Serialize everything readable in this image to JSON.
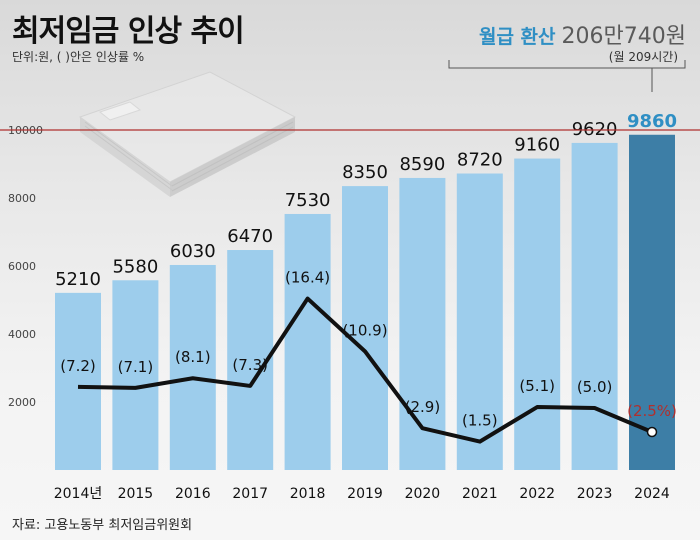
{
  "title": "최저임금 인상 추이",
  "unit_note": "단위:원, ( )안은 인상률 %",
  "monthly": {
    "label": "월급 환산",
    "value": "206만740원",
    "hours": "(월 209시간)"
  },
  "source": "자료: 고용노동부 최저임금위원회",
  "colors": {
    "bar": "#9dcdec",
    "bar_highlight": "#3d7ea6",
    "line": "#111111",
    "ref_line": "#b0302e",
    "highlight_text": "#2f8fc4",
    "last_rate_text": "#b0302e"
  },
  "chart_data": {
    "type": "bar",
    "categories": [
      "2014년",
      "2015",
      "2016",
      "2017",
      "2018",
      "2019",
      "2020",
      "2021",
      "2022",
      "2023",
      "2024"
    ],
    "series": [
      {
        "values": [
          5210,
          5580,
          6030,
          6470,
          7530,
          8350,
          8590,
          8720,
          9160,
          9620,
          9860
        ],
        "labels": [
          "5210",
          "5580",
          "6030",
          "6470",
          "7530",
          "8350",
          "8590",
          "8720",
          "9160",
          "9620",
          "9860"
        ]
      },
      {
        "type": "line",
        "values": [
          7.2,
          7.1,
          8.1,
          7.3,
          16.4,
          10.9,
          2.9,
          1.5,
          5.1,
          5.0,
          2.5
        ],
        "labels": [
          "(7.2)",
          "(7.1)",
          "(8.1)",
          "(7.3)",
          "(16.4)",
          "(10.9)",
          "(2.9)",
          "(1.5)",
          "(5.1)",
          "(5.0)",
          "(2.5%)"
        ]
      }
    ],
    "yticks": [
      "2000",
      "4000",
      "6000",
      "8000",
      "10000"
    ],
    "ylim": [
      0,
      10600
    ],
    "reference_line": 10000,
    "highlight_index": 10,
    "grid": false
  }
}
